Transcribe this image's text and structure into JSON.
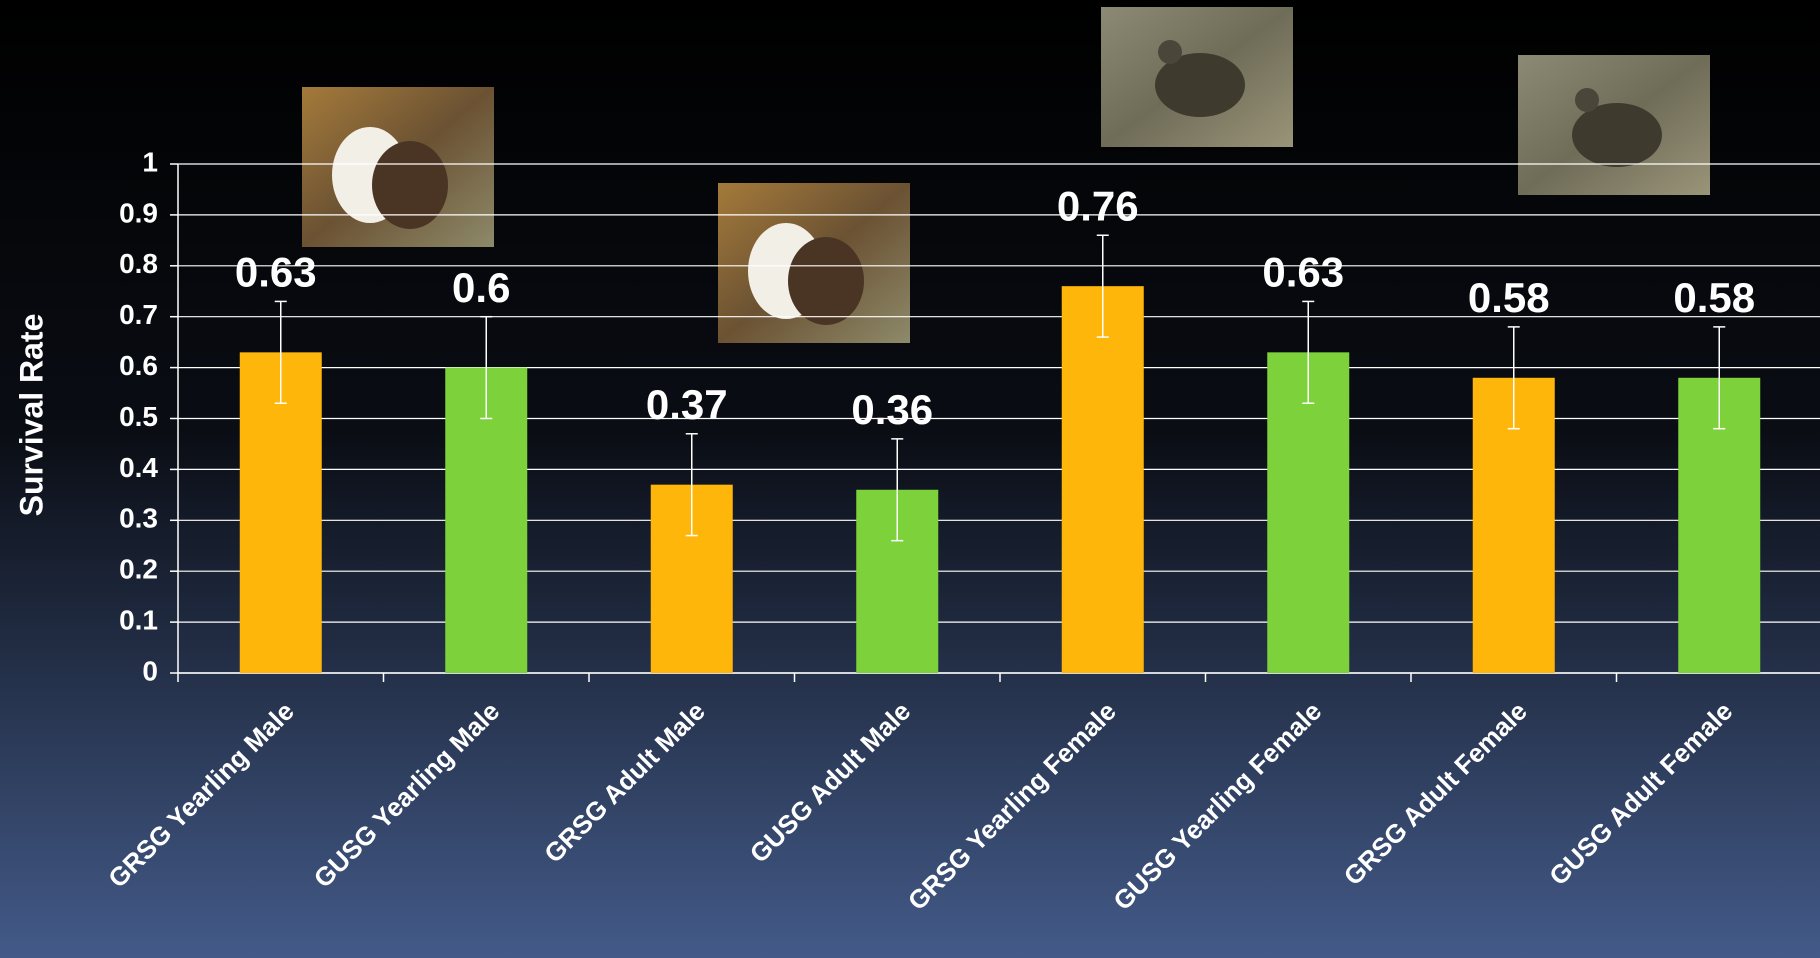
{
  "chart_data": {
    "type": "bar",
    "y_label": "Survival Rate",
    "categories": [
      "GRSG Yearling Male",
      "GUSG Yearling Male",
      "GRSG Adult Male",
      "GUSG Adult Male",
      "GRSG Yearling Female",
      "GUSG Yearling Female",
      "GRSG Adult Female",
      "GUSG Adult Female"
    ],
    "values": [
      0.63,
      0.6,
      0.37,
      0.36,
      0.76,
      0.63,
      0.58,
      0.58
    ],
    "errors": [
      0.1,
      0.1,
      0.1,
      0.1,
      0.1,
      0.1,
      0.1,
      0.1
    ],
    "colors": [
      "#ffb60a",
      "#7dd13a",
      "#ffb60a",
      "#7dd13a",
      "#ffb60a",
      "#7dd13a",
      "#ffb60a",
      "#7dd13a"
    ],
    "ylim": [
      0,
      1
    ],
    "yticks": [
      0,
      0.1,
      0.2,
      0.3,
      0.4,
      0.5,
      0.6,
      0.7,
      0.8,
      0.9,
      1
    ],
    "grid": true
  }
}
